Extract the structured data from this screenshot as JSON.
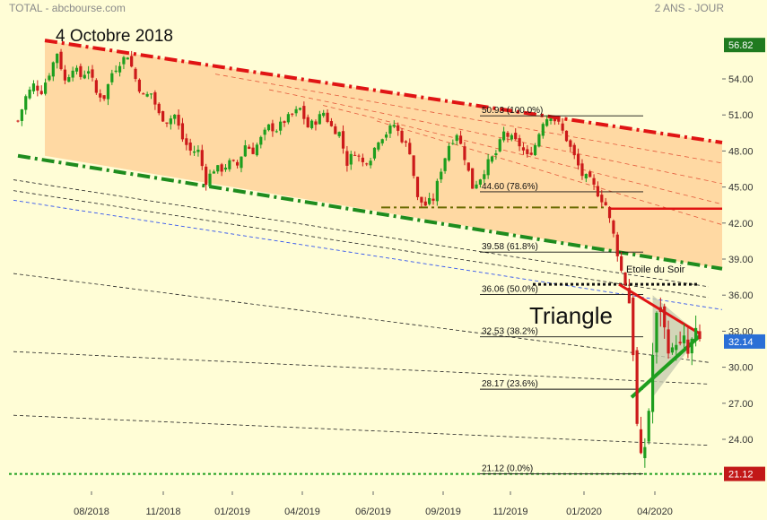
{
  "header": {
    "left": "TOTAL - abcbourse.com",
    "right": "2 ANS - JOUR"
  },
  "colors": {
    "background": "#fffdd6",
    "channel_fill": "#ffd9a3",
    "triangle_fill": "#c8ccb0",
    "up_candle": "#1e9e1e",
    "down_candle": "#cc1a1a",
    "top_price_badge": "#1f7a1f",
    "current_price_badge": "#2a6fd6",
    "low_price_badge": "#c21818"
  },
  "chart_data": {
    "type": "candlestick",
    "title": "",
    "ylim": [
      21.12,
      57.5
    ],
    "y_ticks": [
      24.0,
      27.0,
      30.0,
      33.0,
      36.0,
      39.0,
      42.0,
      45.0,
      48.0,
      51.0,
      54.0
    ],
    "y_tick_labels": [
      "24.00",
      "27.00",
      "30.00",
      "33.00",
      "36.00",
      "39.00",
      "42.00",
      "45.00",
      "48.00",
      "51.00",
      "54.00"
    ],
    "x_ticks": [
      "08/2018",
      "11/2018",
      "01/2019",
      "04/2019",
      "06/2019",
      "09/2019",
      "11/2019",
      "01/2020",
      "04/2020"
    ],
    "price_badges": [
      {
        "name": "top",
        "value": 56.82,
        "label": "56.82"
      },
      {
        "name": "current",
        "value": 32.14,
        "label": "32.14"
      },
      {
        "name": "low",
        "value": 21.12,
        "label": "21.12"
      }
    ],
    "fibonacci_levels": [
      {
        "price": 50.93,
        "label": "50.93  (100.0%)"
      },
      {
        "price": 44.6,
        "label": "44.60  (78.6%)"
      },
      {
        "price": 39.58,
        "label": "39.58  (61.8%)"
      },
      {
        "price": 36.06,
        "label": "36.06  (50.0%)"
      },
      {
        "price": 32.53,
        "label": "32.53  (38.2%)"
      },
      {
        "price": 28.17,
        "label": "28.17  (23.6%)"
      },
      {
        "price": 21.12,
        "label": "21.12  (0.0%)"
      }
    ],
    "annotations": [
      {
        "name": "date-annotation",
        "text": "4  Octobre 2018"
      },
      {
        "name": "pattern-label",
        "text": "Triangle"
      },
      {
        "name": "candle-pattern-label",
        "text": "Etoile du Soir"
      }
    ],
    "key_levels": {
      "resistance_red": 43.2,
      "dotted_black": 36.9,
      "dashdot_olive": 43.3
    },
    "channel": {
      "upper_start": [
        0,
        57.2
      ],
      "upper_end": [
        1,
        48.7
      ],
      "lower_start": [
        0,
        47.6
      ],
      "lower_end": [
        1,
        38.2
      ]
    },
    "price_path": [
      [
        0,
        50.5
      ],
      [
        2,
        52.5
      ],
      [
        4,
        53.5
      ],
      [
        6,
        53.0
      ],
      [
        8,
        54.5
      ],
      [
        10,
        56.2
      ],
      [
        12,
        53.8
      ],
      [
        14,
        55.0
      ],
      [
        16,
        54.2
      ],
      [
        18,
        54.8
      ],
      [
        20,
        52.8
      ],
      [
        22,
        52.5
      ],
      [
        24,
        54.5
      ],
      [
        26,
        55.4
      ],
      [
        28,
        56.0
      ],
      [
        30,
        54.0
      ],
      [
        32,
        52.5
      ],
      [
        34,
        52.8
      ],
      [
        36,
        51.0
      ],
      [
        38,
        50.5
      ],
      [
        40,
        51.0
      ],
      [
        42,
        49.0
      ],
      [
        44,
        48.0
      ],
      [
        46,
        48.0
      ],
      [
        48,
        45.5
      ],
      [
        50,
        46.5
      ],
      [
        52,
        46.5
      ],
      [
        54,
        47.0
      ],
      [
        56,
        46.8
      ],
      [
        58,
        48.5
      ],
      [
        60,
        48.0
      ],
      [
        62,
        49.0
      ],
      [
        64,
        50.0
      ],
      [
        66,
        49.8
      ],
      [
        68,
        50.5
      ],
      [
        70,
        51.0
      ],
      [
        72,
        51.5
      ],
      [
        74,
        50.0
      ],
      [
        76,
        50.5
      ],
      [
        78,
        51.2
      ],
      [
        80,
        50.0
      ],
      [
        82,
        49.5
      ],
      [
        84,
        47.0
      ],
      [
        86,
        48.0
      ],
      [
        88,
        47.0
      ],
      [
        90,
        47.5
      ],
      [
        92,
        49.0
      ],
      [
        94,
        49.5
      ],
      [
        96,
        50.2
      ],
      [
        98,
        49.0
      ],
      [
        100,
        48.0
      ],
      [
        102,
        44.0
      ],
      [
        104,
        43.5
      ],
      [
        106,
        44.0
      ],
      [
        108,
        46.5
      ],
      [
        110,
        48.5
      ],
      [
        112,
        49.5
      ],
      [
        114,
        47.5
      ],
      [
        116,
        45.0
      ],
      [
        118,
        45.8
      ],
      [
        120,
        47.0
      ],
      [
        122,
        47.8
      ],
      [
        124,
        49.5
      ],
      [
        126,
        49.0
      ],
      [
        128,
        48.5
      ],
      [
        130,
        47.5
      ],
      [
        132,
        48.5
      ],
      [
        134,
        50.5
      ],
      [
        136,
        51.0
      ],
      [
        138,
        50.2
      ],
      [
        140,
        49.0
      ],
      [
        142,
        47.5
      ],
      [
        144,
        46.0
      ],
      [
        146,
        45.5
      ],
      [
        148,
        44.5
      ],
      [
        150,
        43.5
      ],
      [
        152,
        41.0
      ],
      [
        153,
        39.5
      ],
      [
        154,
        38.0
      ],
      [
        155,
        37.0
      ],
      [
        156,
        35.5
      ],
      [
        157,
        31.5
      ],
      [
        158,
        25.0
      ],
      [
        159,
        22.0
      ],
      [
        160,
        23.5
      ],
      [
        161,
        26.5
      ],
      [
        162,
        31.0
      ],
      [
        163,
        34.0
      ],
      [
        164,
        35.0
      ],
      [
        165,
        33.0
      ],
      [
        166,
        32.0
      ],
      [
        167,
        31.0
      ],
      [
        168,
        32.5
      ],
      [
        169,
        31.5
      ],
      [
        170,
        32.0
      ],
      [
        171,
        31.0
      ],
      [
        172,
        32.0
      ],
      [
        173,
        32.5
      ],
      [
        174,
        32.14
      ]
    ]
  }
}
